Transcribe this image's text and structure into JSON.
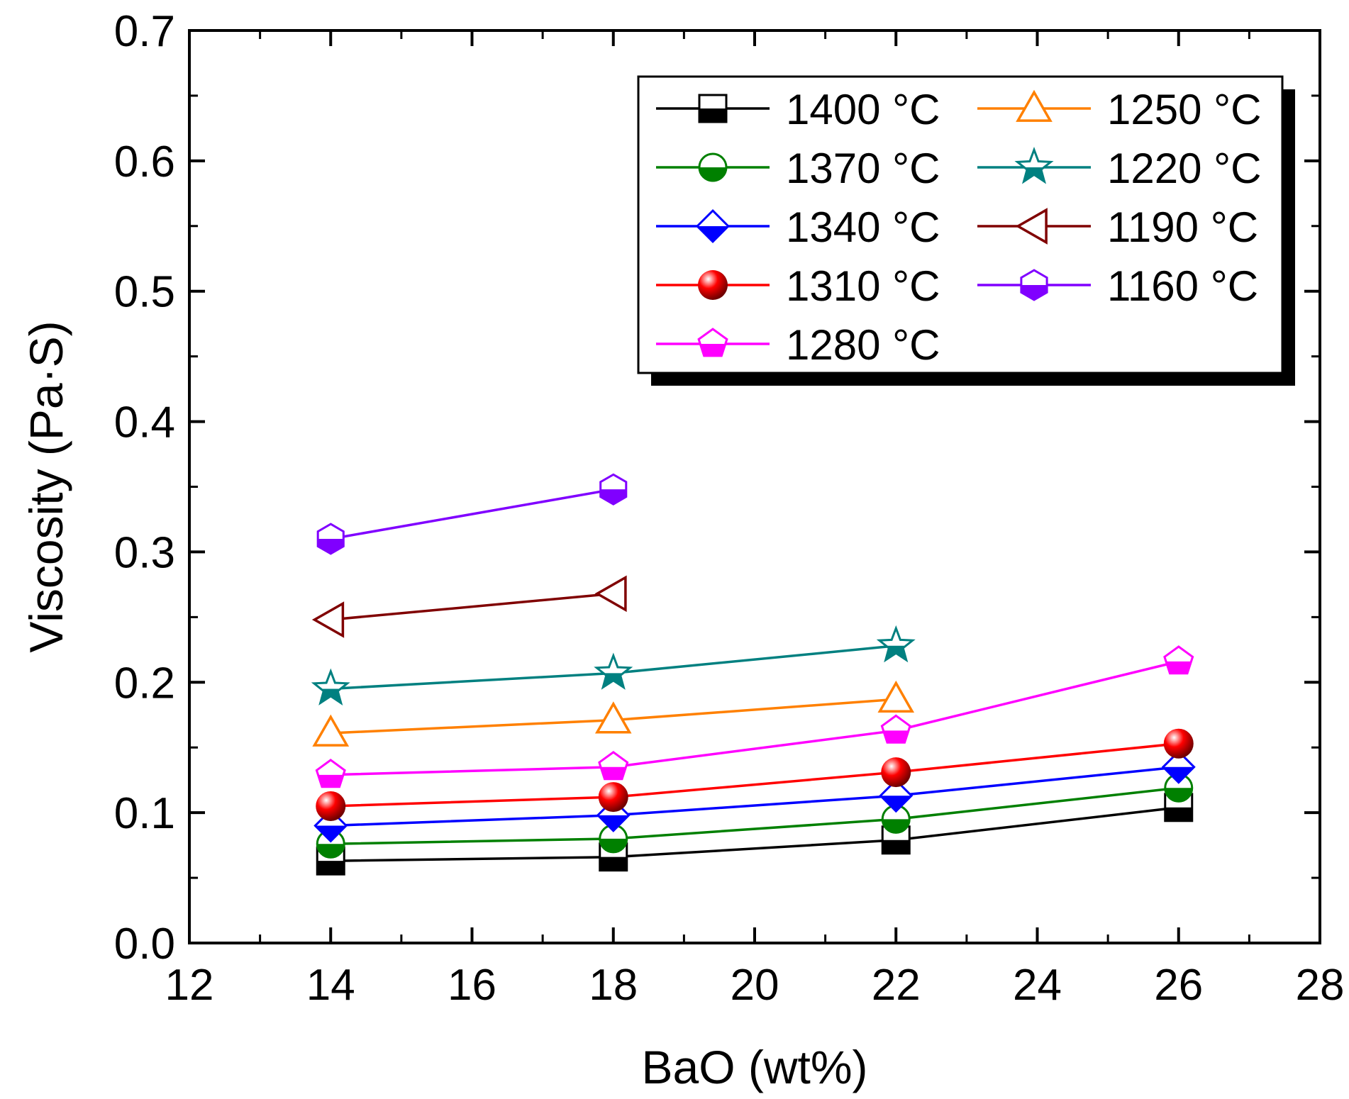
{
  "chart_data": {
    "type": "line",
    "xlabel": "BaO (wt%)",
    "ylabel": "Viscosity (Pa·S)",
    "xlim": [
      12,
      28
    ],
    "ylim": [
      0.0,
      0.7
    ],
    "xticks": [
      "12",
      "14",
      "16",
      "18",
      "20",
      "22",
      "24",
      "26",
      "28"
    ],
    "yticks": [
      "0.0",
      "0.1",
      "0.2",
      "0.3",
      "0.4",
      "0.5",
      "0.6",
      "0.7"
    ],
    "grid": false,
    "legend_position": "top-right",
    "series": [
      {
        "name": "1400 °C",
        "color": "#000000",
        "marker": "square",
        "x": [
          14,
          18,
          22,
          26
        ],
        "y": [
          0.063,
          0.066,
          0.079,
          0.104
        ]
      },
      {
        "name": "1370 °C",
        "color": "#008000",
        "marker": "circle",
        "x": [
          14,
          18,
          22,
          26
        ],
        "y": [
          0.076,
          0.08,
          0.095,
          0.119
        ]
      },
      {
        "name": "1340 °C",
        "color": "#0000ff",
        "marker": "diamond",
        "x": [
          14,
          18,
          22,
          26
        ],
        "y": [
          0.09,
          0.098,
          0.113,
          0.135
        ]
      },
      {
        "name": "1310 °C",
        "color": "#ff0000",
        "marker": "sphere",
        "x": [
          14,
          18,
          22,
          26
        ],
        "y": [
          0.105,
          0.112,
          0.131,
          0.153
        ]
      },
      {
        "name": "1280 °C",
        "color": "#ff00ff",
        "marker": "pentagon",
        "x": [
          14,
          18,
          22,
          26
        ],
        "y": [
          0.129,
          0.135,
          0.163,
          0.216
        ]
      },
      {
        "name": "1250 °C",
        "color": "#ff8000",
        "marker": "triangle-up",
        "x": [
          14,
          18,
          22
        ],
        "y": [
          0.161,
          0.171,
          0.187
        ]
      },
      {
        "name": "1220 °C",
        "color": "#008080",
        "marker": "star",
        "x": [
          14,
          18,
          22
        ],
        "y": [
          0.195,
          0.207,
          0.228
        ]
      },
      {
        "name": "1190 °C",
        "color": "#800000",
        "marker": "triangle-left",
        "x": [
          14,
          18
        ],
        "y": [
          0.248,
          0.268
        ]
      },
      {
        "name": "1160 °C",
        "color": "#8000ff",
        "marker": "hexagon",
        "x": [
          14,
          18
        ],
        "y": [
          0.31,
          0.348
        ]
      }
    ]
  }
}
